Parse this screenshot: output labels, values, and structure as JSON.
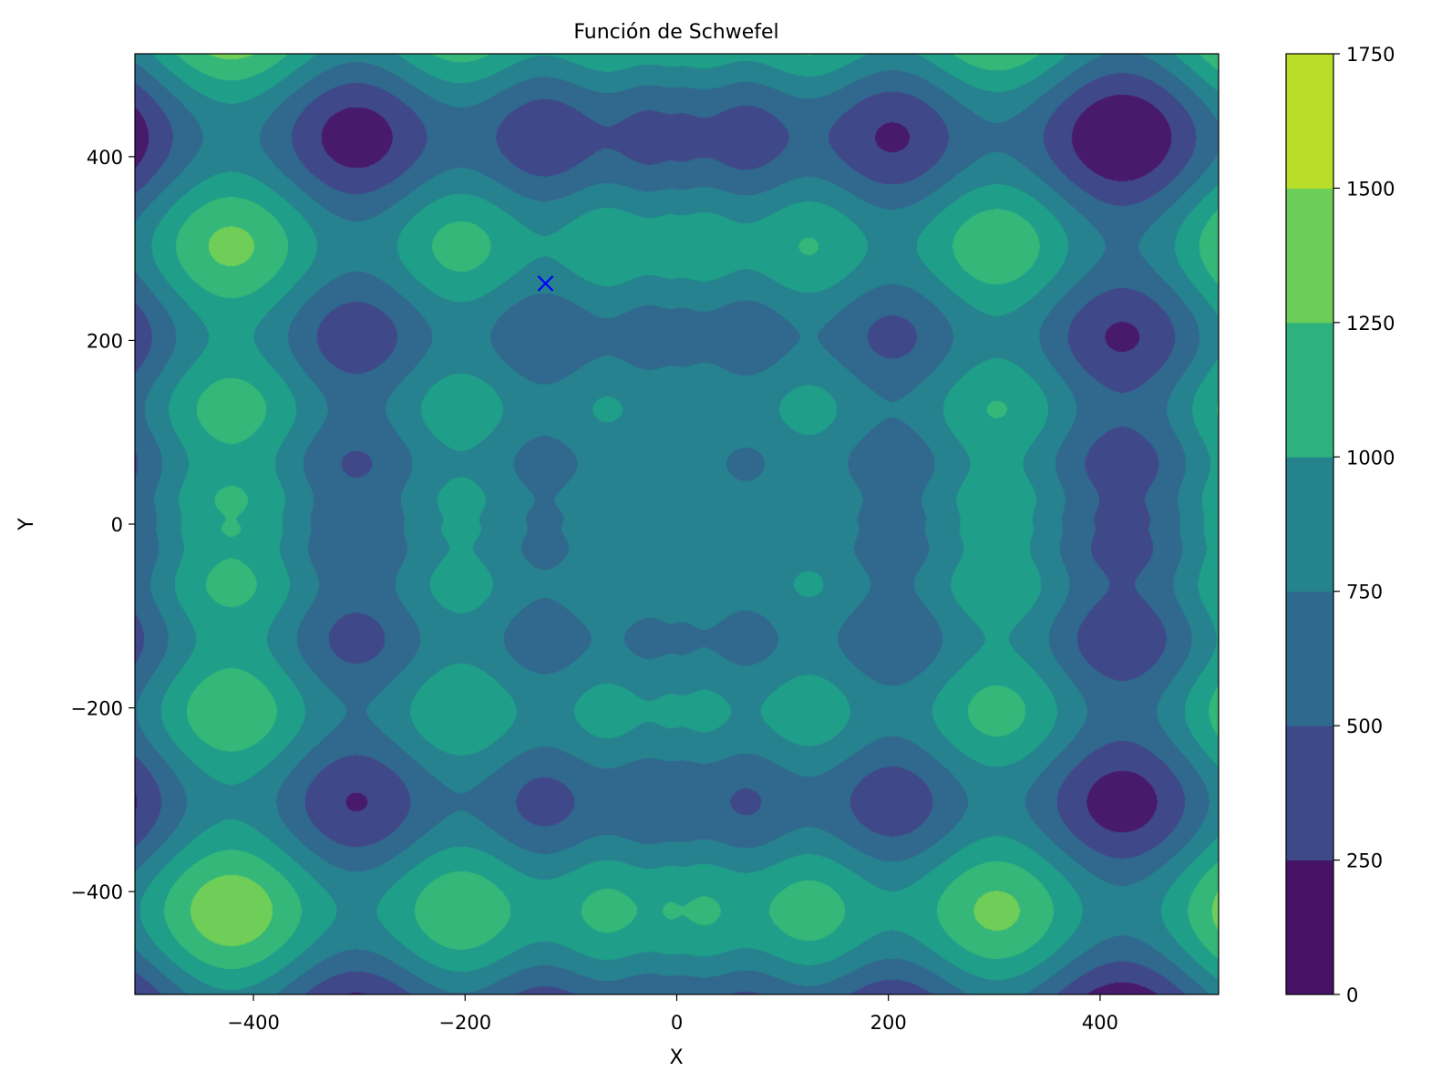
{
  "chart_data": {
    "type": "heatmap",
    "subtype": "filled-contour",
    "title": "Función de Schwefel",
    "xlabel": "X",
    "ylabel": "Y",
    "xlim": [
      -512,
      512
    ],
    "ylim": [
      -512,
      512
    ],
    "function": "schwefel",
    "colormap": "viridis",
    "grid": false,
    "x_ticks": [
      {
        "value": -400,
        "label": "−400"
      },
      {
        "value": -200,
        "label": "−200"
      },
      {
        "value": 0,
        "label": "0"
      },
      {
        "value": 200,
        "label": "200"
      },
      {
        "value": 400,
        "label": "400"
      }
    ],
    "y_ticks": [
      {
        "value": -400,
        "label": "−400"
      },
      {
        "value": -200,
        "label": "−200"
      },
      {
        "value": 0,
        "label": "0"
      },
      {
        "value": 200,
        "label": "200"
      },
      {
        "value": 400,
        "label": "400"
      }
    ],
    "levels": [
      0,
      250,
      500,
      750,
      1000,
      1250,
      1500,
      1750
    ],
    "level_colors": [
      "#481a6c",
      "#3f4889",
      "#31688e",
      "#26828e",
      "#1f9e89",
      "#35b779",
      "#6ece58",
      "#b5de2b"
    ],
    "colorbar": {
      "range": [
        0,
        1750
      ],
      "ticks": [
        {
          "value": 0,
          "label": "0"
        },
        {
          "value": 250,
          "label": "250"
        },
        {
          "value": 500,
          "label": "500"
        },
        {
          "value": 750,
          "label": "750"
        },
        {
          "value": 1000,
          "label": "1000"
        },
        {
          "value": 1250,
          "label": "1250"
        },
        {
          "value": 1500,
          "label": "1500"
        },
        {
          "value": 1750,
          "label": "1750"
        }
      ],
      "band_colors": [
        "#471365",
        "#3e4989",
        "#30698e",
        "#25838e",
        "#2db27d",
        "#6dcd59",
        "#b8de29"
      ]
    },
    "marker": {
      "x": -124,
      "y": 262,
      "symbol": "x",
      "color": "#0000ff"
    }
  }
}
